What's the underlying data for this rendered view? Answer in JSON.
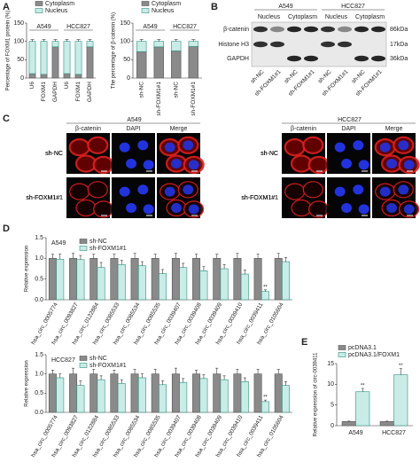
{
  "panel_labels": [
    "A",
    "B",
    "C",
    "D",
    "E"
  ],
  "chart_data": [
    {
      "type": "bar",
      "stacked": true,
      "ylabel": "Percentage of FOXM1 protein (%)",
      "groups": [
        "A549",
        "HCC827"
      ],
      "categories": [
        "U6",
        "FOXM1",
        "GAPDH",
        "U6",
        "FOXM1",
        "GAPDH"
      ],
      "series": [
        {
          "name": "Cytoplasm",
          "color": "#8a8a8a",
          "edgecolor": "#555555",
          "values": [
            12,
            10,
            85,
            12,
            10,
            85
          ],
          "errors": [
            3,
            3,
            5,
            3,
            3,
            5
          ]
        },
        {
          "name": "Nucleus",
          "color": "#c9ece6",
          "edgecolor": "#2f8f80",
          "values": [
            88,
            90,
            15,
            88,
            90,
            15
          ],
          "errors": [
            5,
            5,
            5,
            5,
            5,
            5
          ]
        }
      ],
      "ylim": [
        0,
        150
      ],
      "yticks": [
        0,
        50,
        100,
        150
      ],
      "legend": "above"
    },
    {
      "type": "bar",
      "stacked": true,
      "ylabel": "The percentage of β-catenin (%)",
      "groups": [
        "A549",
        "HCC827"
      ],
      "categories": [
        "sh-NC",
        "sh-FOXM1#1",
        "sh-NC",
        "sh-FOXM1#1"
      ],
      "series": [
        {
          "name": "Cytoplasm",
          "color": "#8a8a8a",
          "edgecolor": "#555555",
          "values": [
            72,
            85,
            74,
            86
          ],
          "errors": [
            6,
            4,
            5,
            4
          ]
        },
        {
          "name": "Nucleus",
          "color": "#c9ece6",
          "edgecolor": "#2f8f80",
          "values": [
            28,
            15,
            26,
            14
          ],
          "errors": [
            5,
            5,
            5,
            5
          ]
        }
      ],
      "ylim": [
        0,
        150
      ],
      "yticks": [
        0,
        50,
        100,
        150
      ],
      "legend": "above"
    },
    {
      "type": "bar",
      "stacked": false,
      "title": "A549",
      "ylabel": "Relative expression",
      "categories": [
        "hsa_circ_0005774",
        "hsa_circ_0093827",
        "hsa_circ_0122884",
        "hsa_circ_0085533",
        "hsa_circ_0085534",
        "hsa_circ_0085535",
        "hsa_circ_0039407",
        "hsa_circ_0039408",
        "hsa_circ_0039409",
        "hsa_circ_0039410",
        "hsa_circ_0039411",
        "hsa_circ_0105604"
      ],
      "series": [
        {
          "name": "sh-NC",
          "color": "#8a8a8a",
          "edgecolor": "#555555",
          "values": [
            1,
            1,
            1,
            1,
            1,
            1,
            1,
            1,
            1,
            1,
            1,
            1
          ],
          "errors": [
            0.1,
            0.12,
            0.1,
            0.1,
            0.12,
            0.1,
            0.12,
            0.1,
            0.1,
            0.12,
            0.1,
            0.12
          ]
        },
        {
          "name": "sh-FOXM1#1",
          "color": "#c9ece6",
          "edgecolor": "#2f8f80",
          "values": [
            0.98,
            0.97,
            0.78,
            0.85,
            0.82,
            0.63,
            0.78,
            0.7,
            0.75,
            0.62,
            0.2,
            0.92
          ],
          "errors": [
            0.12,
            0.1,
            0.12,
            0.1,
            0.1,
            0.1,
            0.1,
            0.1,
            0.1,
            0.1,
            0.04,
            0.1
          ],
          "significance": [
            null,
            null,
            null,
            null,
            null,
            null,
            null,
            null,
            null,
            null,
            "**",
            null
          ]
        }
      ],
      "ylim": [
        0,
        1.5
      ],
      "yticks": [
        {
          "value": 0,
          "label": "0.0"
        },
        0.5,
        {
          "value": 1,
          "label": "1.0"
        },
        1.5
      ],
      "legend": "upper left"
    },
    {
      "type": "bar",
      "stacked": false,
      "title": "HCC827",
      "ylabel": "Relative expression",
      "categories": [
        "hsa_circ_0005774",
        "hsa_circ_0093827",
        "hsa_circ_0122884",
        "hsa_circ_0085533",
        "hsa_circ_0085534",
        "hsa_circ_0085535",
        "hsa_circ_0039407",
        "hsa_circ_0039408",
        "hsa_circ_0039409",
        "hsa_circ_0039410",
        "hsa_circ_0039411",
        "hsa_circ_0105604"
      ],
      "series": [
        {
          "name": "sh-NC",
          "color": "#8a8a8a",
          "edgecolor": "#555555",
          "values": [
            1,
            1,
            1,
            1,
            1,
            1,
            1,
            1,
            1,
            1,
            1,
            1
          ],
          "errors": [
            0.1,
            0.15,
            0.12,
            0.1,
            0.12,
            0.12,
            0.15,
            0.1,
            0.15,
            0.12,
            0.12,
            0.12
          ]
        },
        {
          "name": "sh-FOXM1#1",
          "color": "#c9ece6",
          "edgecolor": "#2f8f80",
          "values": [
            0.9,
            0.7,
            0.85,
            0.75,
            0.9,
            0.72,
            0.78,
            0.88,
            0.85,
            0.8,
            0.28,
            0.7
          ],
          "errors": [
            0.1,
            0.12,
            0.1,
            0.1,
            0.1,
            0.1,
            0.1,
            0.1,
            0.1,
            0.1,
            0.04,
            0.1
          ],
          "significance": [
            null,
            null,
            null,
            null,
            null,
            null,
            null,
            null,
            null,
            null,
            "**",
            null
          ]
        }
      ],
      "ylim": [
        0,
        1.5
      ],
      "yticks": [
        {
          "value": 0,
          "label": "0.0"
        },
        0.5,
        {
          "value": 1,
          "label": "1.0"
        },
        1.5
      ],
      "legend": "upper left"
    },
    {
      "type": "bar",
      "stacked": false,
      "ylabel": "Relative expression of circ-0039411",
      "categories": [
        "A549",
        "HCC827"
      ],
      "series": [
        {
          "name": "pcDNA3.1",
          "color": "#8a8a8a",
          "edgecolor": "#555555",
          "values": [
            1,
            1
          ],
          "errors": [
            0.1,
            0.1
          ]
        },
        {
          "name": "pcDNA3.1/FOXM1",
          "color": "#c9ece6",
          "edgecolor": "#2f8f80",
          "values": [
            8.2,
            12.3
          ],
          "errors": [
            0.8,
            1.5
          ],
          "significance": [
            "**",
            "**"
          ]
        }
      ],
      "ylim": [
        0,
        15
      ],
      "yticks": [
        0,
        5,
        10,
        15
      ],
      "legend": "above"
    }
  ],
  "blot": {
    "cell_lines": [
      "A549",
      "HCC827"
    ],
    "fractions": [
      "Nucleus",
      "Cytoplasm",
      "Nucleus",
      "Cytoplasm"
    ],
    "proteins": [
      "β-catenin",
      "Histone H3",
      "GAPDH"
    ],
    "sizes": [
      "86kDa",
      "17kDa",
      "36kDa"
    ],
    "lanes": [
      "sh-NC",
      "sh-FOXM1#1",
      "sh-NC",
      "sh-FOXM1#1",
      "sh-NC",
      "sh-FOXM1#1",
      "sh-NC",
      "sh-FOXM1#1"
    ]
  },
  "microscopy": {
    "cell_lines": [
      "A549",
      "HCC827"
    ],
    "channels": [
      "β-catenin",
      "DAPI",
      "Merge",
      "β-catenin",
      "DAPI",
      "Merge"
    ],
    "conditions": [
      "sh-NC",
      "sh-FOXM1#1",
      "sh-NC",
      "sh-FOXM1#1"
    ]
  }
}
